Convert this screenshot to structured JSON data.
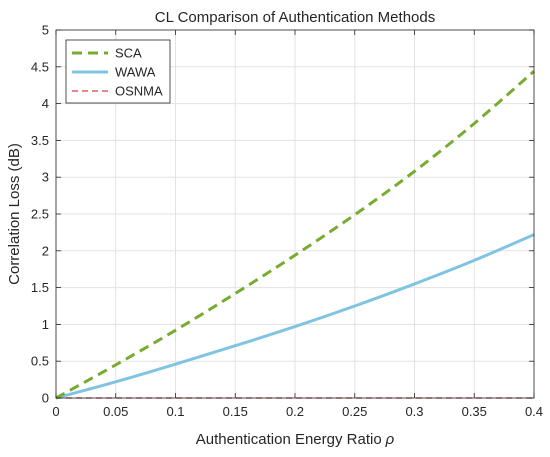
{
  "chart_data": {
    "type": "line",
    "title": "CL Comparison of Authentication Methods",
    "xlabel": "Authentication Energy Ratio",
    "xlabel_symbol": "ρ",
    "ylabel": "Correlation Loss (dB)",
    "xlim": [
      0,
      0.4
    ],
    "ylim": [
      0,
      5
    ],
    "xticks": [
      0,
      0.05,
      0.1,
      0.15,
      0.2,
      0.25,
      0.3,
      0.35,
      0.4
    ],
    "xtick_labels": [
      "0",
      "0.05",
      "0.1",
      "0.15",
      "0.2",
      "0.25",
      "0.3",
      "0.35",
      "0.4"
    ],
    "yticks": [
      0,
      0.5,
      1,
      1.5,
      2,
      2.5,
      3,
      3.5,
      4,
      4.5,
      5
    ],
    "ytick_labels": [
      "0",
      "0.5",
      "1",
      "1.5",
      "2",
      "2.5",
      "3",
      "3.5",
      "4",
      "4.5",
      "5"
    ],
    "grid": true,
    "legend_position": "top-left",
    "x": [
      0,
      0.05,
      0.1,
      0.15,
      0.2,
      0.25,
      0.3,
      0.35,
      0.4
    ],
    "series": [
      {
        "name": "SCA",
        "color": "#77AC30",
        "style": "dashed",
        "values": [
          0,
          0.45,
          0.92,
          1.42,
          1.94,
          2.49,
          3.08,
          3.73,
          4.44
        ]
      },
      {
        "name": "WAWA",
        "color": "#80C4E2",
        "style": "solid",
        "values": [
          0,
          0.22,
          0.46,
          0.71,
          0.97,
          1.25,
          1.55,
          1.87,
          2.22
        ]
      },
      {
        "name": "OSNMA",
        "color": "#D95F5F",
        "style": "dashed",
        "values": [
          0,
          0,
          0,
          0,
          0,
          0,
          0,
          0,
          0
        ]
      }
    ]
  }
}
